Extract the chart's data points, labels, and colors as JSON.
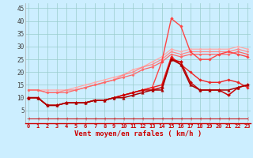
{
  "xlabel": "Vent moyen/en rafales ( km/h )",
  "background_color": "#cceeff",
  "grid_color": "#99cccc",
  "x": [
    0,
    1,
    2,
    3,
    4,
    5,
    6,
    7,
    8,
    9,
    10,
    11,
    12,
    13,
    14,
    15,
    16,
    17,
    18,
    19,
    20,
    21,
    22,
    23
  ],
  "lines": [
    {
      "color": "#ffaaaa",
      "values": [
        13,
        13,
        13,
        13,
        13,
        14,
        15,
        16,
        17,
        18,
        19,
        21,
        22,
        24,
        26,
        29,
        28,
        29,
        29,
        29,
        29,
        29,
        30,
        29
      ],
      "lw": 0.9,
      "marker": "D",
      "ms": 1.5
    },
    {
      "color": "#ff8888",
      "values": [
        13,
        13,
        12,
        12,
        13,
        13,
        14,
        15,
        16,
        17,
        19,
        20,
        22,
        23,
        25,
        28,
        27,
        28,
        28,
        28,
        28,
        28,
        29,
        28
      ],
      "lw": 0.9,
      "marker": "D",
      "ms": 1.5
    },
    {
      "color": "#ff6666",
      "values": [
        13,
        13,
        12,
        12,
        12,
        13,
        14,
        15,
        16,
        17,
        18,
        19,
        21,
        22,
        24,
        27,
        26,
        27,
        27,
        27,
        27,
        27,
        28,
        27
      ],
      "lw": 0.9,
      "marker": "D",
      "ms": 1.5
    },
    {
      "color": "#ff4444",
      "values": [
        10,
        10,
        7,
        7,
        8,
        8,
        8,
        9,
        9,
        10,
        11,
        12,
        13,
        14,
        24,
        41,
        38,
        28,
        25,
        25,
        27,
        28,
        27,
        26
      ],
      "lw": 1.0,
      "marker": "D",
      "ms": 1.8
    },
    {
      "color": "#ee2222",
      "values": [
        10,
        10,
        7,
        7,
        8,
        8,
        8,
        9,
        9,
        10,
        11,
        12,
        13,
        14,
        15,
        26,
        23,
        20,
        17,
        16,
        16,
        17,
        16,
        14
      ],
      "lw": 1.0,
      "marker": "D",
      "ms": 1.8
    },
    {
      "color": "#cc0000",
      "values": [
        10,
        10,
        7,
        7,
        8,
        8,
        8,
        9,
        9,
        10,
        11,
        12,
        13,
        13,
        14,
        25,
        24,
        16,
        13,
        13,
        13,
        11,
        14,
        15
      ],
      "lw": 1.1,
      "marker": "D",
      "ms": 2.0
    },
    {
      "color": "#aa0000",
      "values": [
        10,
        10,
        7,
        7,
        8,
        8,
        8,
        9,
        9,
        10,
        10,
        11,
        12,
        13,
        13,
        25,
        23,
        15,
        13,
        13,
        13,
        13,
        14,
        15
      ],
      "lw": 1.1,
      "marker": "^",
      "ms": 2.5
    },
    {
      "color": "#cc0000",
      "values": [
        2,
        2,
        2,
        2,
        2,
        2,
        2,
        2,
        2,
        2,
        2,
        2,
        2,
        2,
        2,
        2,
        2,
        2,
        2,
        2,
        2,
        2,
        2,
        2
      ],
      "lw": 0.7,
      "marker": "3",
      "ms": 3.5
    }
  ],
  "ylim": [
    0,
    47
  ],
  "yticks": [
    5,
    10,
    15,
    20,
    25,
    30,
    35,
    40,
    45
  ],
  "xlim": [
    -0.3,
    23.3
  ],
  "xticks": [
    0,
    1,
    2,
    3,
    4,
    5,
    6,
    7,
    8,
    9,
    10,
    11,
    12,
    13,
    14,
    15,
    16,
    17,
    18,
    19,
    20,
    21,
    22,
    23
  ]
}
